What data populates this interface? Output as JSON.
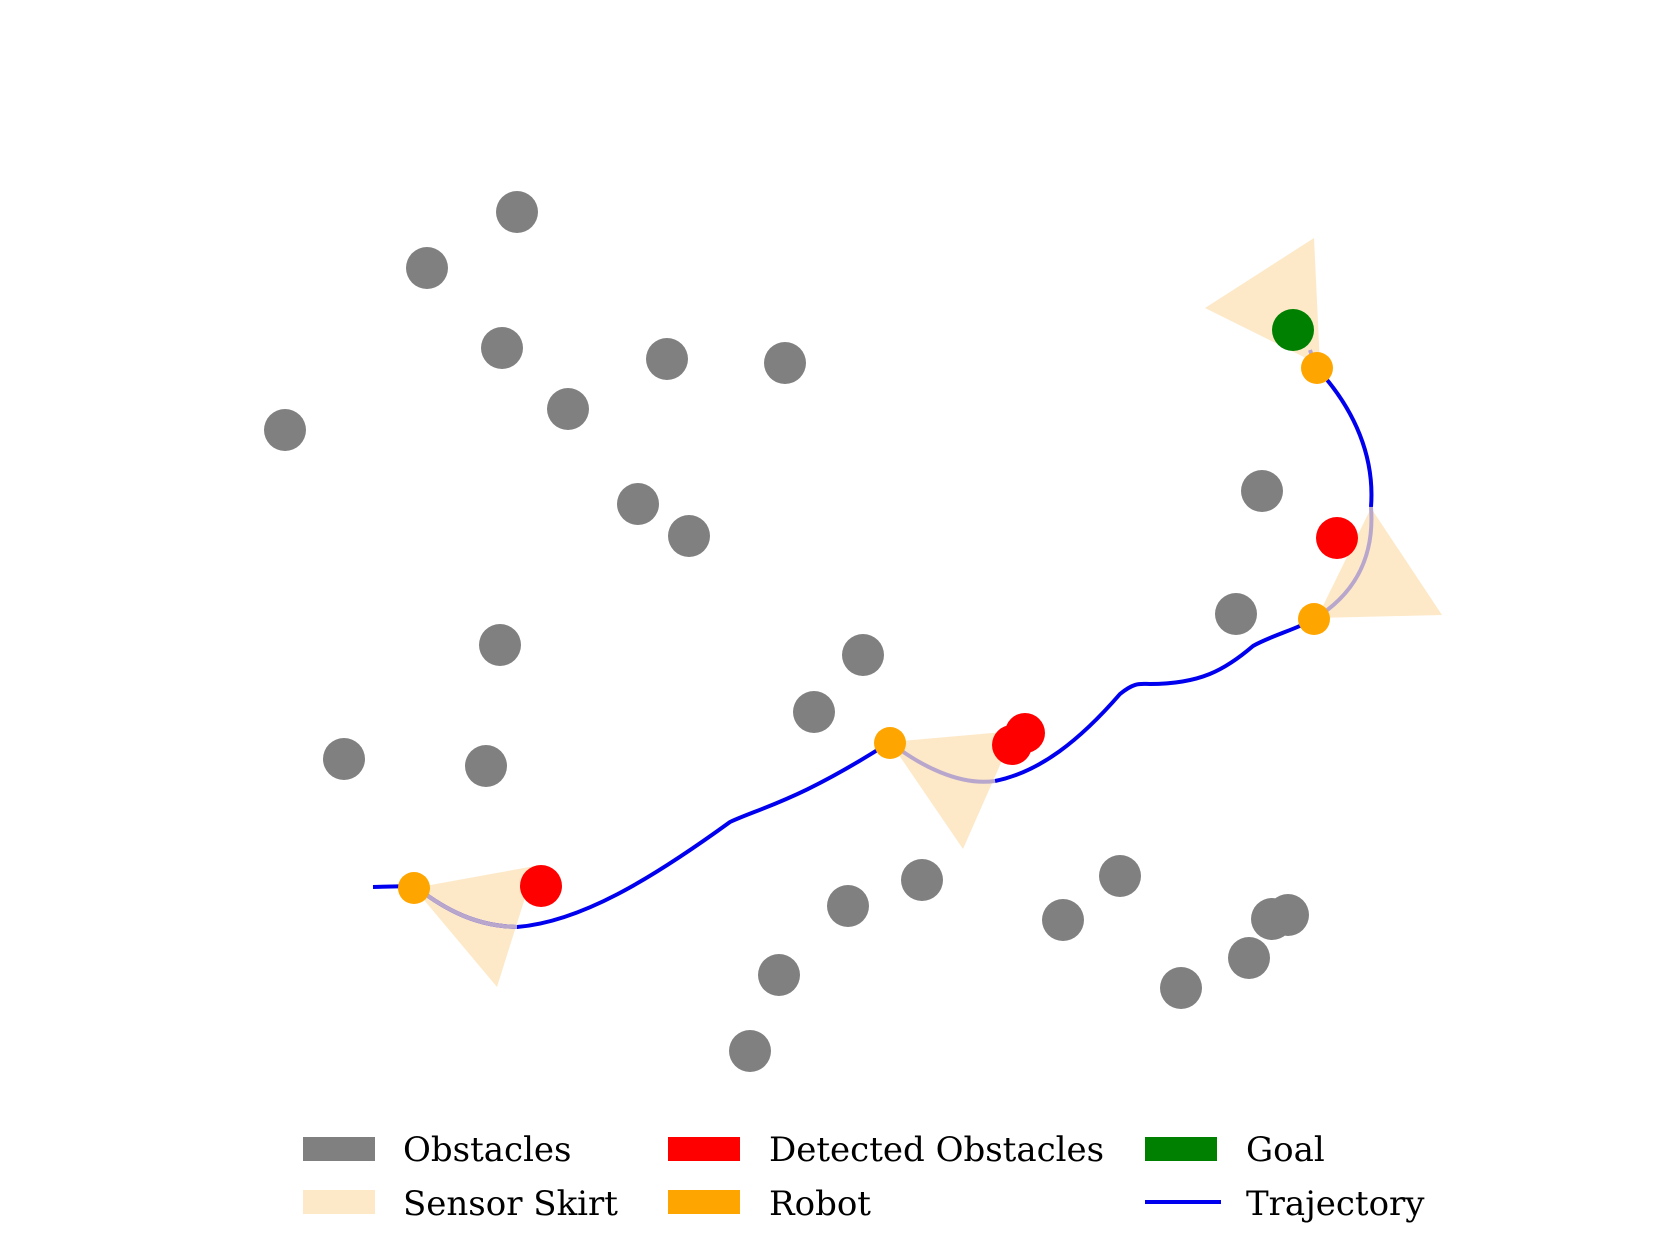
{
  "colors": {
    "obstacle": "#808080",
    "detected": "#ff0000",
    "goal": "#008000",
    "robot": "#ffa500",
    "skirt": "#fde9c8",
    "trajectory": "#0000ee",
    "skirt_path": "#b8a6cc"
  },
  "legend": {
    "obstacles": "Obstacles",
    "sensor_skirt": "Sensor Skirt",
    "detected_obstacles": "Detected Obstacles",
    "robot": "Robot",
    "goal": "Goal",
    "trajectory": "Trajectory"
  }
}
